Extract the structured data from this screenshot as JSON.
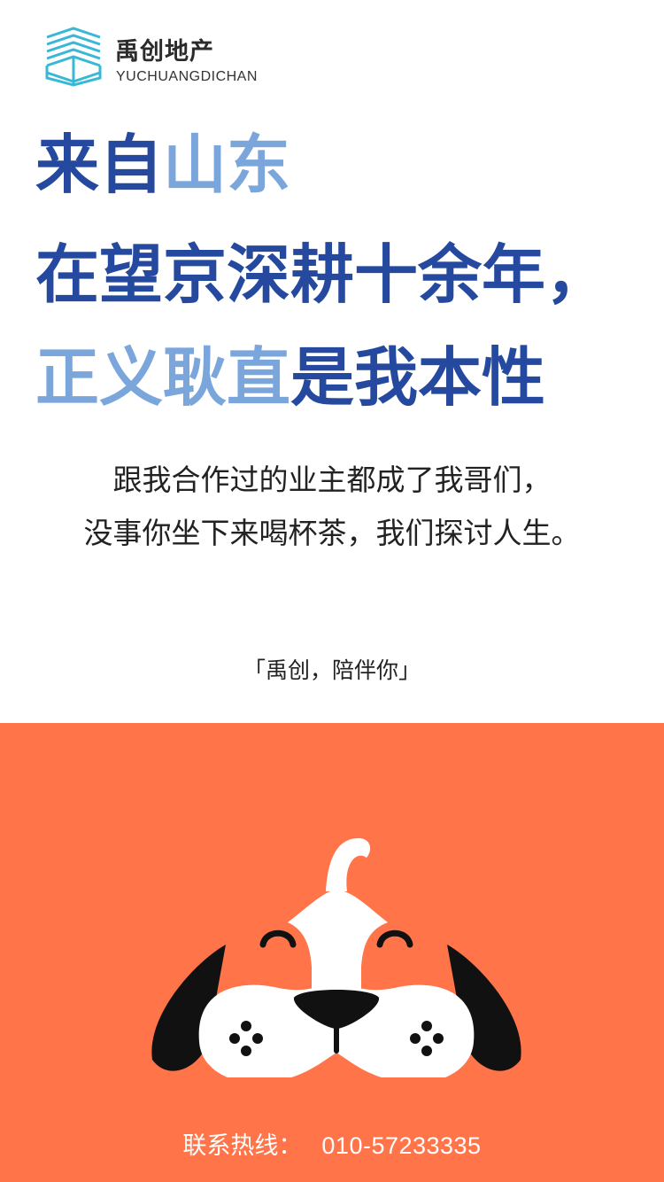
{
  "brand": {
    "name_cn": "禹创地产",
    "name_en": "YUCHUANGDICHAN",
    "colors": {
      "dark_blue": "#24499e",
      "light_blue": "#7aa6db",
      "orange": "#ff7448",
      "logo_cyan": "#39b8d6"
    }
  },
  "headline": {
    "line1": {
      "part1": "来自",
      "part2": "山东"
    },
    "line2": "在望京深耕十余年，",
    "line3": {
      "part1": "正义耿直",
      "part2": "是我本性"
    }
  },
  "body": {
    "line1": "跟我合作过的业主都成了我哥们，",
    "line2": "没事你坐下来喝杯茶，我们探讨人生。"
  },
  "slogan": "「禹创，陪伴你」",
  "hotline": {
    "label": "联系热线：",
    "number": "010-57233335"
  },
  "illustration": {
    "icon": "dog-face-icon"
  }
}
